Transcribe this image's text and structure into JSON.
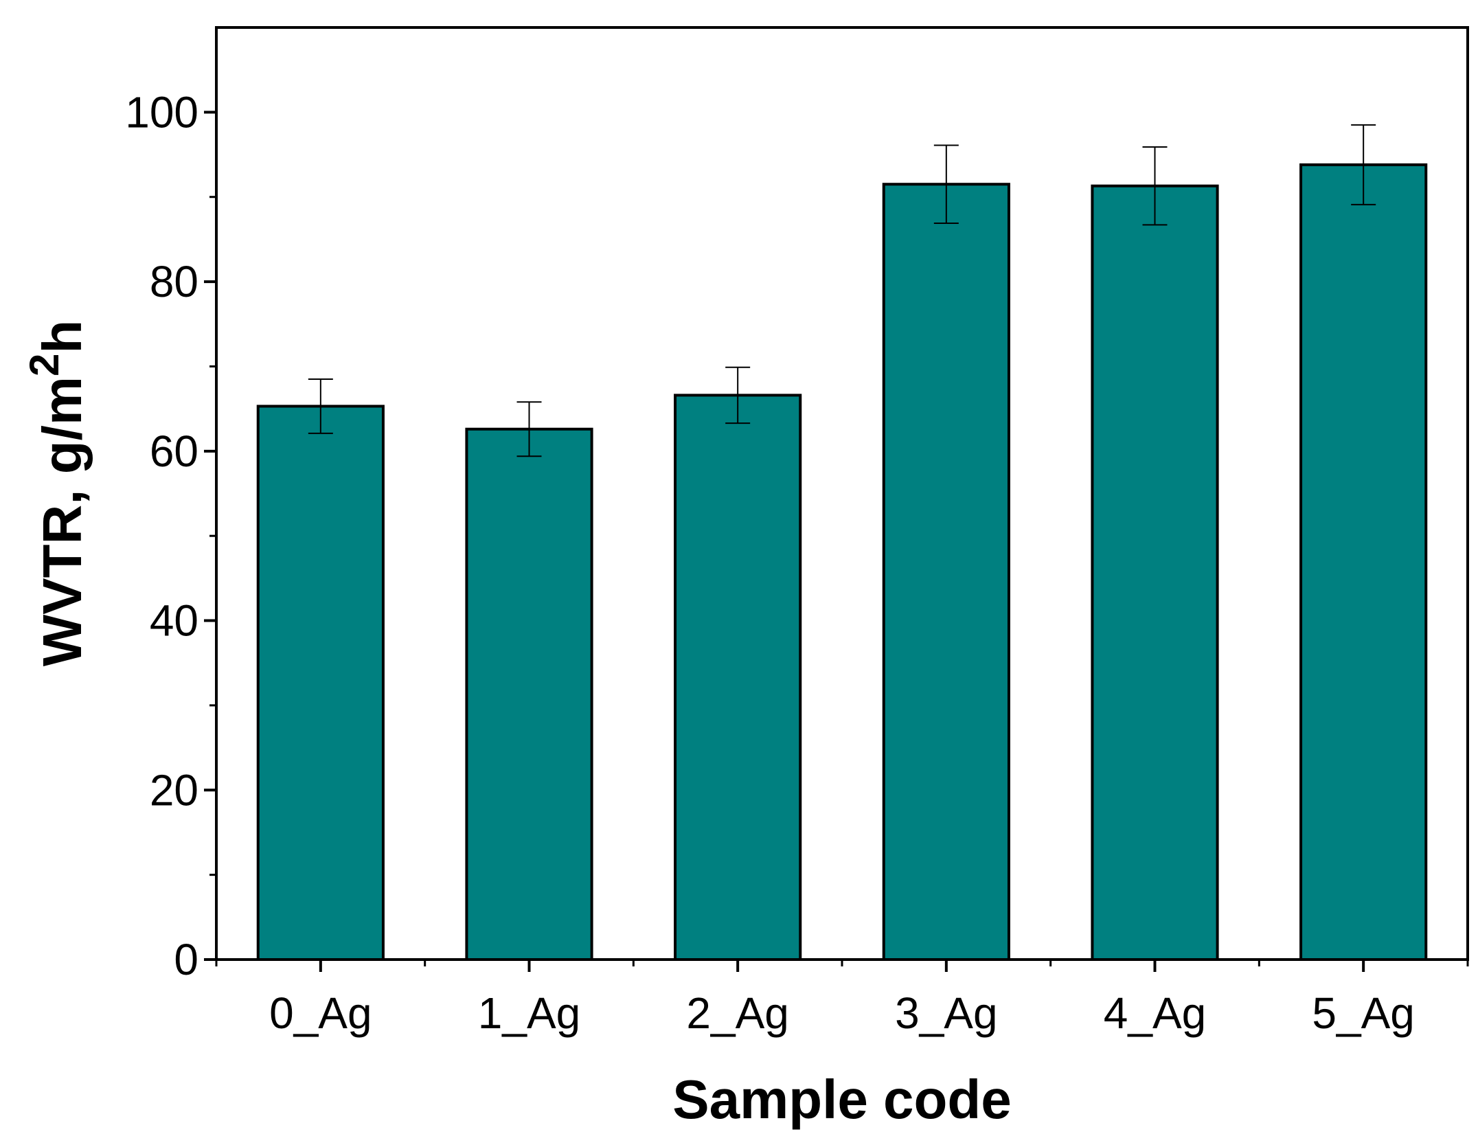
{
  "chart_data": {
    "type": "bar",
    "xlabel": "Sample code",
    "ylabel_main": "WVTR, g/m",
    "ylabel_sup": "2",
    "ylabel_tail": "h",
    "categories": [
      "0_Ag",
      "1_Ag",
      "2_Ag",
      "3_Ag",
      "4_Ag",
      "5_Ag"
    ],
    "values": [
      65.3,
      62.6,
      66.6,
      91.5,
      91.3,
      93.8
    ],
    "errors": [
      3.2,
      3.2,
      3.3,
      4.6,
      4.6,
      4.7
    ],
    "ylim": [
      0,
      110
    ],
    "yticks": [
      0,
      20,
      40,
      60,
      80,
      100
    ],
    "yticks_minor": [
      10,
      30,
      50,
      70,
      90
    ],
    "ytick_labels": [
      "0",
      "20",
      "40",
      "60",
      "80",
      "100"
    ],
    "bar_color": "#008080",
    "edge_color": "#000000",
    "grid": false,
    "legend": false
  }
}
